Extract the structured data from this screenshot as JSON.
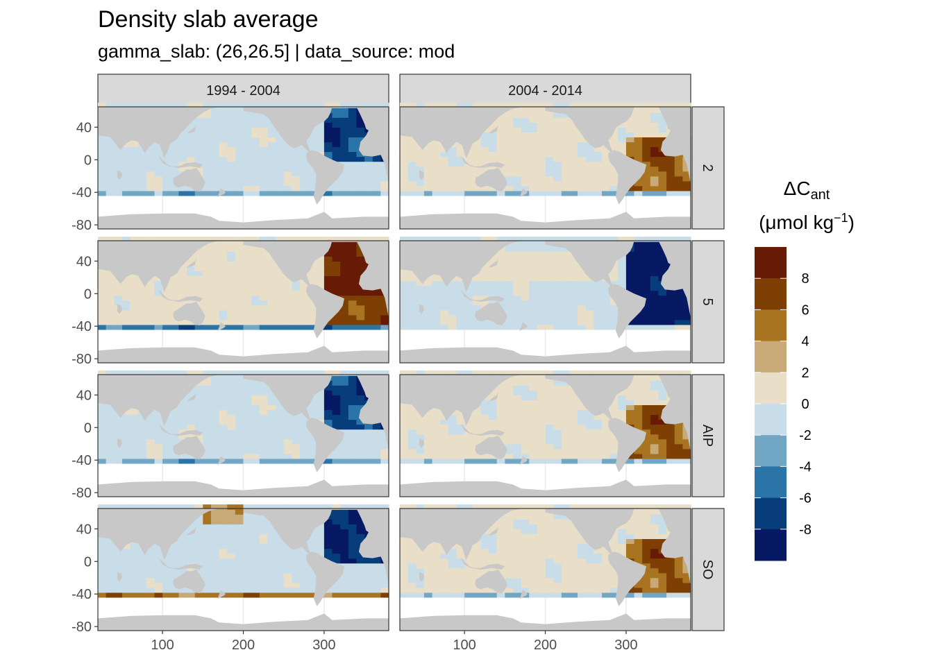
{
  "title": "Density slab average",
  "subtitle": "gamma_slab: (26,26.5] | data_source: mod",
  "chart_data": {
    "type": "heatmap",
    "title": "Density slab average",
    "subtitle": "gamma_slab: (26,26.5] | data_source: mod",
    "xlabel": "",
    "ylabel": "",
    "xlim": [
      20,
      380
    ],
    "ylim": [
      -85,
      65
    ],
    "x_ticks": [
      100,
      200,
      300
    ],
    "y_ticks": [
      40,
      0,
      -40,
      -80
    ],
    "x_tick_labels": [
      "100",
      "200",
      "300"
    ],
    "y_tick_labels": [
      "40",
      "0",
      "-40",
      "-80"
    ],
    "facet_columns": [
      "1994 - 2004",
      "2004 - 2014"
    ],
    "facet_rows": [
      "2",
      "5",
      "AIP",
      "SO"
    ],
    "legend": {
      "title": "ΔCant",
      "title_main": "ΔC",
      "title_sub": "ant",
      "unit_label": "(μmol kg",
      "unit_exponent": "−1",
      "unit_close": ")",
      "placement": "right",
      "bins": [
        {
          "range": [
            8,
            10
          ],
          "color": "#671A05"
        },
        {
          "range": [
            6,
            8
          ],
          "color": "#7E3F05"
        },
        {
          "range": [
            4,
            6
          ],
          "color": "#A97422"
        },
        {
          "range": [
            2,
            4
          ],
          "color": "#C7AA78"
        },
        {
          "range": [
            0,
            2
          ],
          "color": "#E9DEC7"
        },
        {
          "range": [
            -2,
            0
          ],
          "color": "#C9DDE8"
        },
        {
          "range": [
            -4,
            -2
          ],
          "color": "#71A6C4"
        },
        {
          "range": [
            -6,
            -4
          ],
          "color": "#2A74A7"
        },
        {
          "range": [
            -8,
            -6
          ],
          "color": "#063D7A"
        },
        {
          "range": [
            -10,
            -8
          ],
          "color": "#071963"
        }
      ],
      "tick_labels": [
        "8",
        "6",
        "4",
        "2",
        "0",
        "-2",
        "-4",
        "-6",
        "-8"
      ]
    },
    "colors": {
      "land": "#C8C8C8",
      "strip_fill": "#D9D9D9",
      "panel_border": "#333333",
      "grid": "#EBEBEB"
    },
    "grid": true
  }
}
